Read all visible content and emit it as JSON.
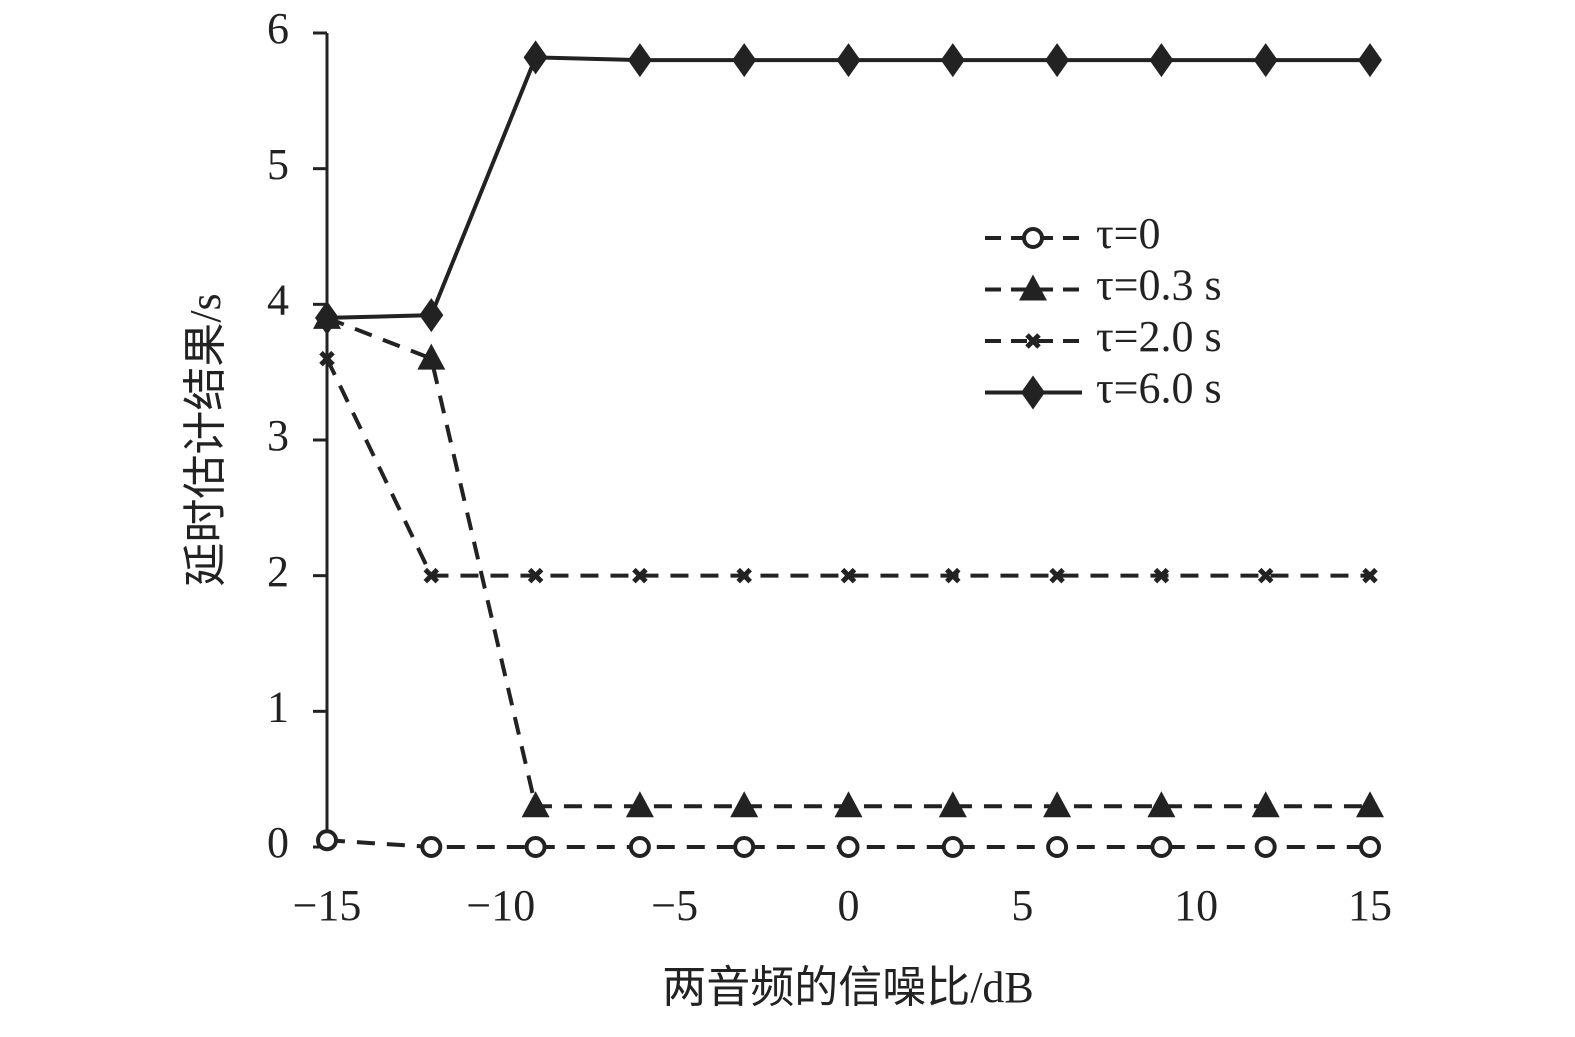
{
  "chart_data": {
    "type": "line",
    "x_label": "两音频的信噪比/dB",
    "y_label": "延时估计结果/s",
    "x": [
      -15,
      -12,
      -9,
      -6,
      -3,
      0,
      3,
      6,
      9,
      12,
      15
    ],
    "series": [
      {
        "name": "τ=0",
        "color": "#222222",
        "dash": true,
        "marker": "circle",
        "values": [
          0.05,
          0,
          0,
          0,
          0,
          0,
          0,
          0,
          0,
          0,
          0
        ]
      },
      {
        "name": "τ=0.3 s",
        "color": "#222222",
        "dash": true,
        "marker": "triangle",
        "values": [
          3.9,
          3.6,
          0.3,
          0.3,
          0.3,
          0.3,
          0.3,
          0.3,
          0.3,
          0.3,
          0.3
        ]
      },
      {
        "name": "τ=2.0 s",
        "color": "#222222",
        "dash": true,
        "marker": "x",
        "values": [
          3.6,
          2,
          2,
          2,
          2,
          2,
          2,
          2,
          2,
          2,
          2
        ]
      },
      {
        "name": "τ=6.0 s",
        "color": "#222222",
        "dash": false,
        "marker": "diamond",
        "values": [
          3.9,
          3.92,
          5.82,
          5.8,
          5.8,
          5.8,
          5.8,
          5.8,
          5.8,
          5.8,
          5.8
        ]
      }
    ],
    "xlim": [
      -15,
      15
    ],
    "xticks": [
      {
        "value": -15,
        "label": "−15"
      },
      {
        "value": -10,
        "label": "−10"
      },
      {
        "value": -5,
        "label": "−5"
      },
      0,
      5,
      10,
      15
    ],
    "ylim": [
      0,
      6
    ],
    "yticks": [
      0,
      1,
      2,
      3,
      4,
      5,
      6
    ],
    "legend": "upper right"
  }
}
